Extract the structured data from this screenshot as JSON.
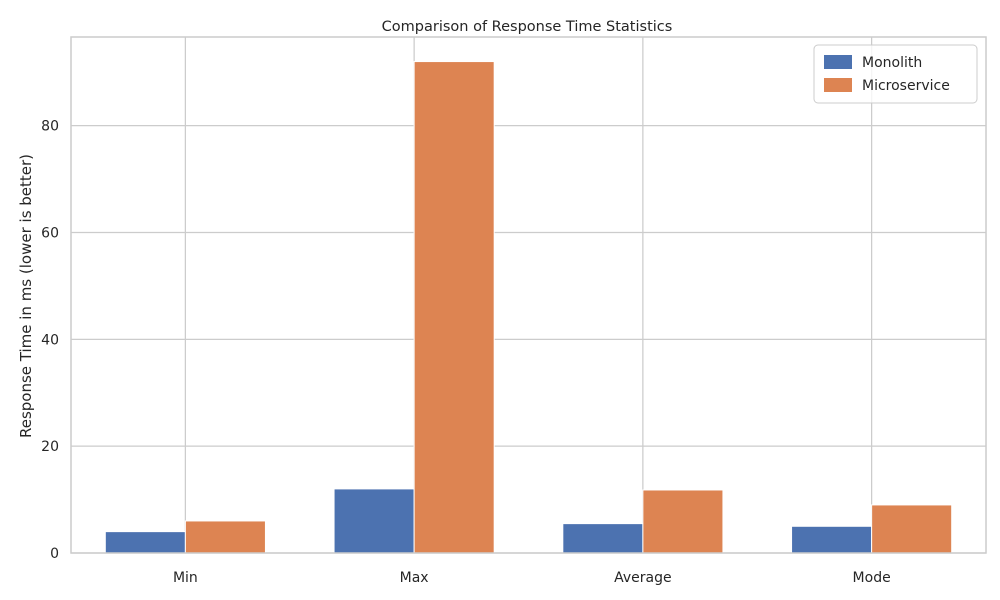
{
  "chart_data": {
    "type": "bar",
    "title": "Comparison of Response Time Statistics",
    "xlabel": "",
    "ylabel": "Response Time in ms (lower is better)",
    "categories": [
      "Min",
      "Max",
      "Average",
      "Mode"
    ],
    "series": [
      {
        "name": "Monolith",
        "color": "#4c72b0",
        "values": [
          4,
          12,
          5.5,
          5
        ]
      },
      {
        "name": "Microservice",
        "color": "#dd8452",
        "values": [
          6,
          92,
          11.8,
          9
        ]
      }
    ],
    "ylim": [
      0,
      96.6
    ],
    "yticks": [
      0,
      20,
      40,
      60,
      80
    ],
    "grid": true,
    "legend_position": "top-right"
  }
}
